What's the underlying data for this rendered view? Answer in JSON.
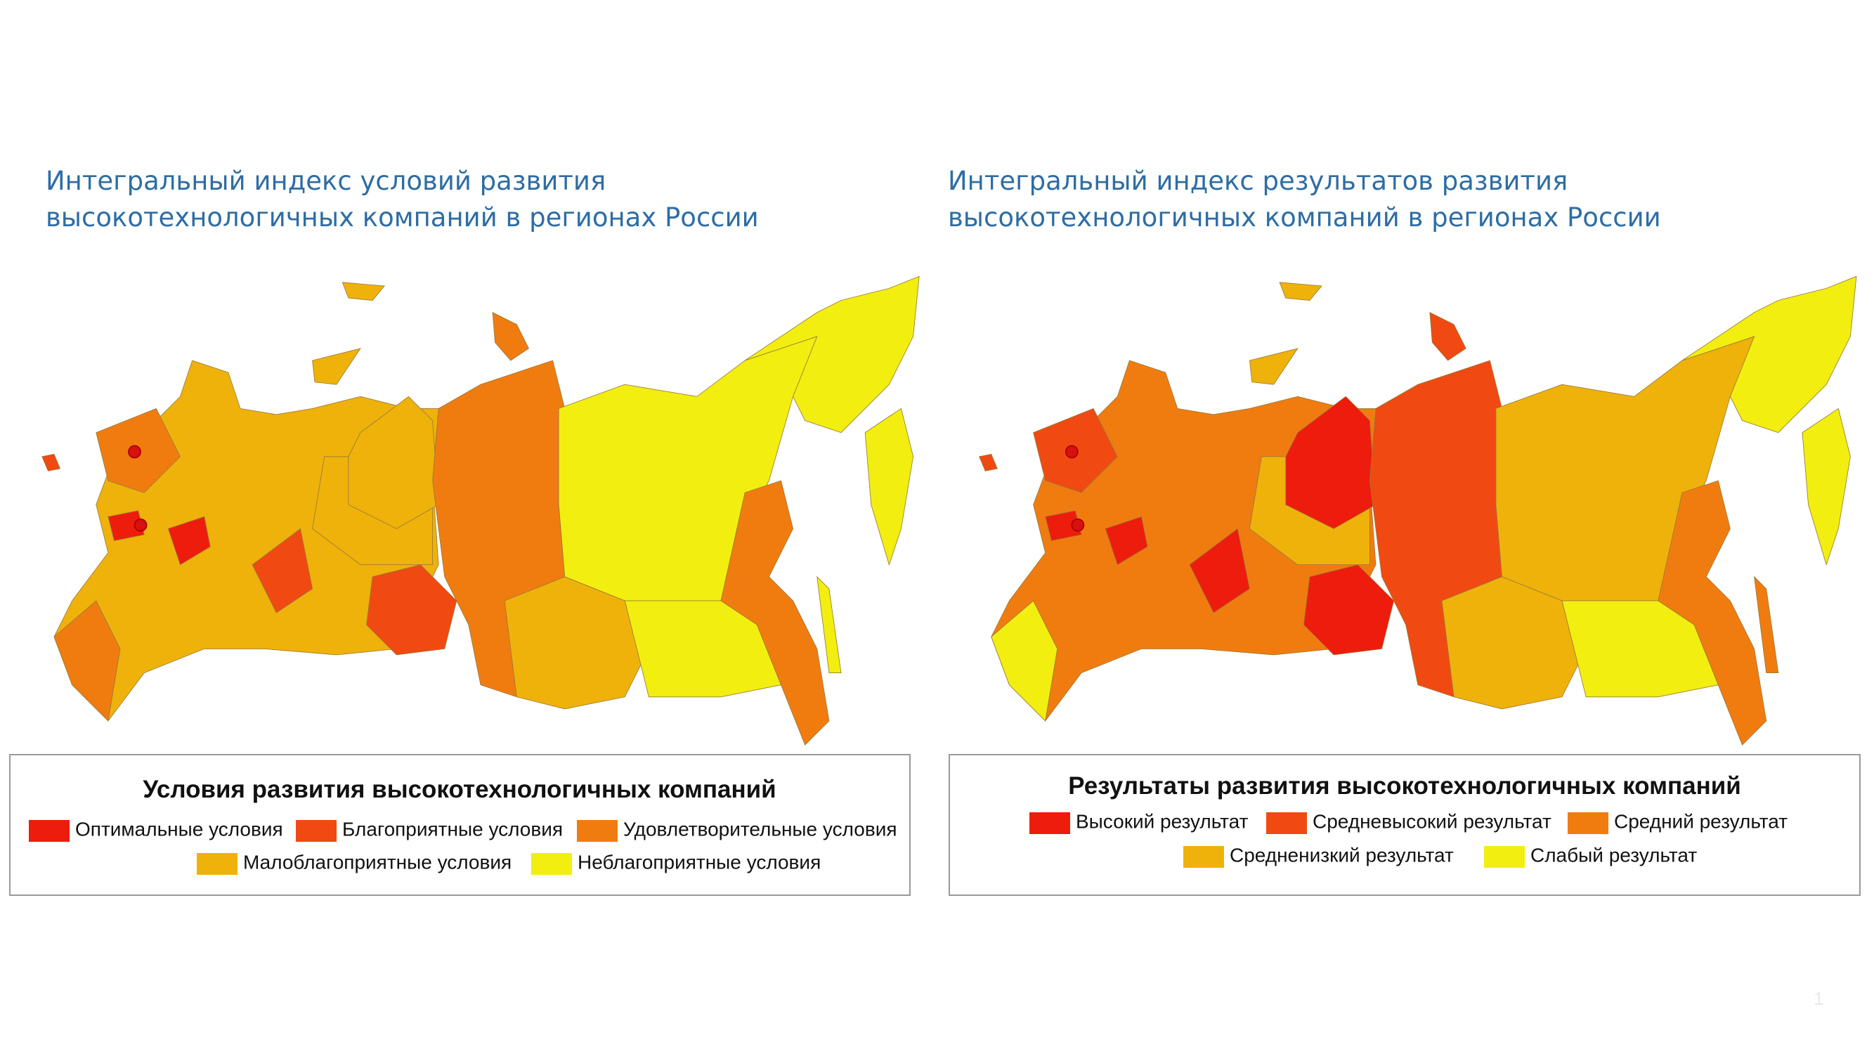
{
  "panels": [
    {
      "title_lines": [
        "Интегральный индекс условий развития",
        "высокотехнологичных компаний в регионах России"
      ],
      "legend": {
        "title": "Условия развития высокотехнологичных компаний",
        "items": [
          {
            "label": "Оптимальные условия",
            "color": "#ee1c0c"
          },
          {
            "label": "Благоприятные условия",
            "color": "#f04a12"
          },
          {
            "label": "Удовлетворительные условия",
            "color": "#f07c10"
          },
          {
            "label": "Малоблагоприятные условия",
            "color": "#efb20a"
          },
          {
            "label": "Неблагоприятные условия",
            "color": "#f2ee10"
          }
        ]
      }
    },
    {
      "title_lines": [
        "Интегральный индекс результатов развития",
        "высокотехнологичных компаний в регионах России"
      ],
      "legend": {
        "title": "Результаты развития высокотехнологичных компаний",
        "items": [
          {
            "label": "Высокий результат",
            "color": "#ee1c0c"
          },
          {
            "label": "Средневысокий результат",
            "color": "#f04a12"
          },
          {
            "label": "Средний результат",
            "color": "#f07c10"
          },
          {
            "label": "Средненизкий результат",
            "color": "#efb20a"
          },
          {
            "label": "Слабый результат",
            "color": "#f2ee10"
          }
        ]
      }
    }
  ],
  "page_number": "1"
}
